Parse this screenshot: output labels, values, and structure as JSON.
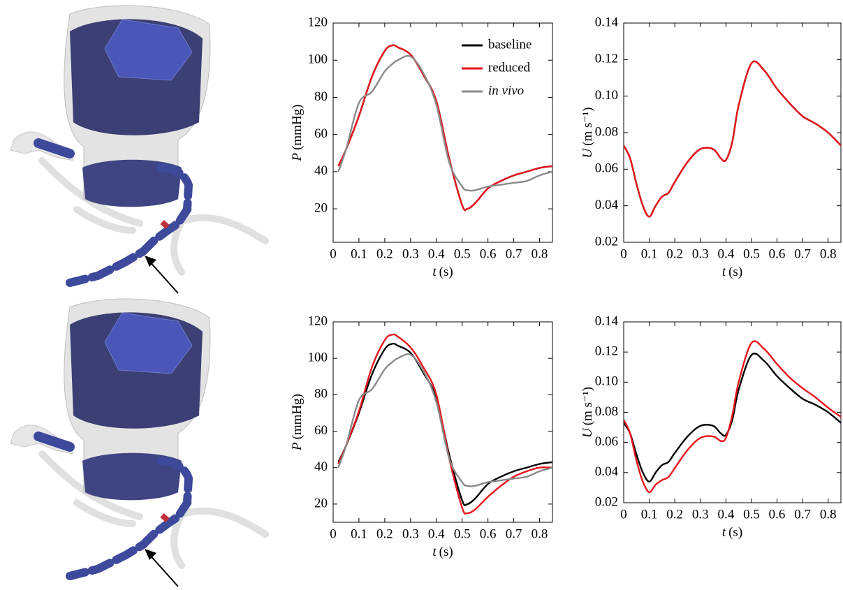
{
  "chart_data": [
    {
      "type": "line",
      "legend": "upper right",
      "xlabel": {
        "symbol": "t",
        "unit": "(s)"
      },
      "ylabel": {
        "symbol": "P",
        "unit": "(mmHg)"
      },
      "xlim": [
        0,
        0.85
      ],
      "xticks": [
        0,
        0.1,
        0.2,
        0.3,
        0.4,
        0.5,
        0.6,
        0.7,
        0.8
      ],
      "ylim": [
        2,
        120
      ],
      "yticks": [
        20,
        40,
        60,
        80,
        100,
        120
      ],
      "x": [
        0.02,
        0.05,
        0.1,
        0.15,
        0.2,
        0.23,
        0.25,
        0.3,
        0.35,
        0.4,
        0.45,
        0.5,
        0.52,
        0.55,
        0.6,
        0.65,
        0.7,
        0.75,
        0.8,
        0.85
      ],
      "series": [
        {
          "name": "baseline",
          "color": "#000000",
          "values": [
            43,
            52,
            70,
            91,
            105,
            108,
            107,
            103,
            92,
            78,
            47,
            22,
            20,
            23,
            31,
            35,
            38,
            40,
            42,
            43
          ]
        },
        {
          "name": "reduced",
          "color": "#e8141b",
          "values": [
            43,
            52,
            70,
            91,
            105,
            108,
            107,
            103,
            92,
            78,
            47,
            22,
            20,
            23,
            31,
            35,
            38,
            40,
            42,
            43
          ]
        },
        {
          "name": "in vivo",
          "color": "#8a8a8a",
          "style": "italic",
          "values": [
            40,
            52,
            77,
            83,
            94,
            98,
            100,
            102,
            93,
            76,
            45,
            32,
            30,
            30,
            32,
            33,
            34,
            35,
            38,
            40
          ]
        }
      ]
    },
    {
      "type": "line",
      "xlabel": {
        "symbol": "t",
        "unit": "(s)"
      },
      "ylabel": {
        "symbol": "U",
        "unit": "(m s⁻¹)"
      },
      "xlim": [
        0,
        0.85
      ],
      "xticks": [
        0,
        0.1,
        0.2,
        0.3,
        0.4,
        0.5,
        0.6,
        0.7,
        0.8
      ],
      "ylim": [
        0.02,
        0.14
      ],
      "yticks": [
        0.02,
        0.04,
        0.06,
        0.08,
        {
          "value": 0.1,
          "label": "0.10"
        },
        0.12,
        0.14
      ],
      "x": [
        0,
        0.025,
        0.05,
        0.075,
        0.1,
        0.125,
        0.15,
        0.175,
        0.2,
        0.25,
        0.3,
        0.35,
        0.38,
        0.4,
        0.425,
        0.45,
        0.5,
        0.55,
        0.6,
        0.65,
        0.7,
        0.75,
        0.8,
        0.85
      ],
      "series": [
        {
          "color": "#000000",
          "values": [
            0.073,
            0.066,
            0.052,
            0.04,
            0.034,
            0.04,
            0.045,
            0.047,
            0.053,
            0.064,
            0.071,
            0.071,
            0.066,
            0.065,
            0.075,
            0.095,
            0.118,
            0.114,
            0.104,
            0.096,
            0.089,
            0.085,
            0.08,
            0.073
          ]
        },
        {
          "color": "#e8141b",
          "values": [
            0.073,
            0.066,
            0.052,
            0.04,
            0.034,
            0.04,
            0.045,
            0.047,
            0.053,
            0.064,
            0.071,
            0.071,
            0.066,
            0.065,
            0.075,
            0.095,
            0.118,
            0.114,
            0.104,
            0.096,
            0.089,
            0.085,
            0.08,
            0.073
          ]
        }
      ]
    },
    {
      "type": "line",
      "xlabel": {
        "symbol": "t",
        "unit": "(s)"
      },
      "ylabel": {
        "symbol": "P",
        "unit": "(mmHg)"
      },
      "xlim": [
        0,
        0.85
      ],
      "xticks": [
        0,
        0.1,
        0.2,
        0.3,
        0.4,
        0.5,
        0.6,
        0.7,
        0.8
      ],
      "ylim": [
        10,
        120
      ],
      "yticks": [
        20,
        40,
        60,
        80,
        100,
        120
      ],
      "x": [
        0.02,
        0.05,
        0.1,
        0.15,
        0.2,
        0.23,
        0.25,
        0.3,
        0.35,
        0.4,
        0.45,
        0.5,
        0.52,
        0.55,
        0.6,
        0.65,
        0.7,
        0.75,
        0.8,
        0.85
      ],
      "series": [
        {
          "color": "#000000",
          "values": [
            43,
            52,
            70,
            91,
            105,
            108,
            107,
            103,
            92,
            78,
            47,
            22,
            20,
            23,
            31,
            35,
            38,
            40,
            42,
            43
          ]
        },
        {
          "color": "#e8141b",
          "values": [
            42,
            52,
            71,
            95,
            110,
            113,
            112,
            106,
            95,
            80,
            45,
            18,
            15,
            17,
            24,
            30,
            35,
            38,
            40,
            40
          ]
        },
        {
          "color": "#8a8a8a",
          "values": [
            40,
            52,
            77,
            83,
            94,
            98,
            100,
            102,
            93,
            76,
            45,
            32,
            30,
            30,
            32,
            33,
            34,
            35,
            38,
            40
          ]
        }
      ]
    },
    {
      "type": "line",
      "xlabel": {
        "symbol": "t",
        "unit": "(s)"
      },
      "ylabel": {
        "symbol": "U",
        "unit": "(m s⁻¹)"
      },
      "xlim": [
        0,
        0.85
      ],
      "xticks": [
        0,
        0.1,
        0.2,
        0.3,
        0.4,
        0.5,
        0.6,
        0.7,
        0.8
      ],
      "ylim": [
        0.02,
        0.14
      ],
      "yticks": [
        0.02,
        0.04,
        0.06,
        0.08,
        {
          "value": 0.1,
          "label": "0.10"
        },
        0.12,
        0.14
      ],
      "x": [
        0,
        0.025,
        0.05,
        0.075,
        0.1,
        0.125,
        0.15,
        0.175,
        0.2,
        0.25,
        0.3,
        0.35,
        0.38,
        0.4,
        0.425,
        0.45,
        0.5,
        0.55,
        0.6,
        0.65,
        0.7,
        0.75,
        0.8,
        0.85
      ],
      "series": [
        {
          "color": "#000000",
          "values": [
            0.073,
            0.066,
            0.052,
            0.04,
            0.034,
            0.04,
            0.045,
            0.047,
            0.053,
            0.064,
            0.071,
            0.071,
            0.066,
            0.065,
            0.075,
            0.095,
            0.118,
            0.114,
            0.104,
            0.096,
            0.089,
            0.085,
            0.08,
            0.073
          ]
        },
        {
          "color": "#e8141b",
          "values": [
            0.075,
            0.066,
            0.048,
            0.034,
            0.027,
            0.032,
            0.035,
            0.037,
            0.043,
            0.055,
            0.063,
            0.064,
            0.061,
            0.063,
            0.078,
            0.1,
            0.126,
            0.122,
            0.112,
            0.103,
            0.096,
            0.09,
            0.083,
            0.077
          ]
        }
      ]
    }
  ]
}
